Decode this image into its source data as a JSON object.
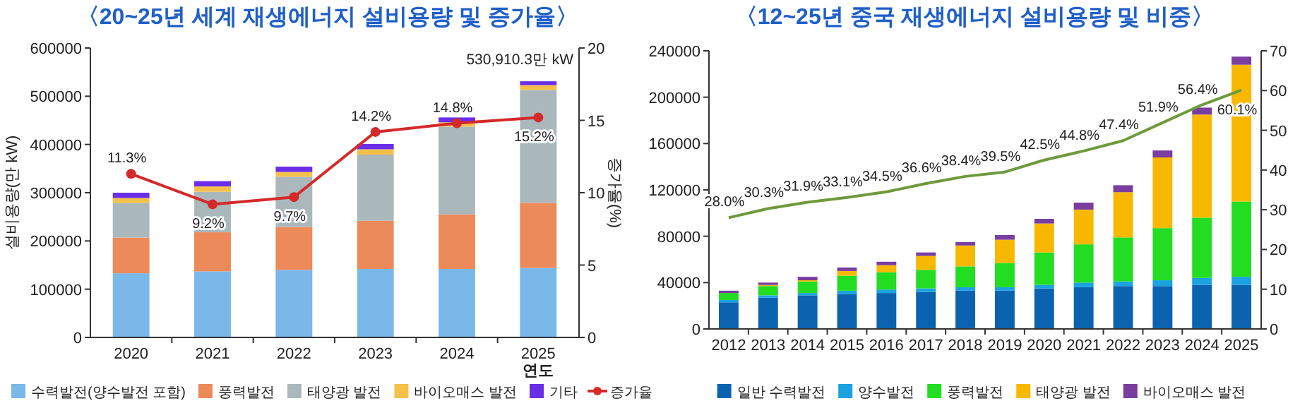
{
  "chart_data": [
    {
      "type": "bar",
      "title": "〈20~25년 세계 재생에너지 설비용량 및 증가율〉",
      "stacked": true,
      "categories": [
        "2020",
        "2021",
        "2022",
        "2023",
        "2024",
        "2025"
      ],
      "xlabel": "연도",
      "ylabel": "설비용량(만 kW)",
      "y2label": "증가율(%)",
      "ylim": [
        0,
        600000
      ],
      "yticks": [
        0,
        100000,
        200000,
        300000,
        400000,
        500000,
        600000
      ],
      "y2lim": [
        0,
        20
      ],
      "y2ticks": [
        0,
        5,
        10,
        15,
        20
      ],
      "legend": "bottom",
      "annotations": [
        {
          "text": "530,910.3만 kW",
          "x": "2025",
          "y": 530910.3
        }
      ],
      "series": [
        {
          "name": "수력발전(양수발전 포함)",
          "color": "#7ab8ea",
          "values": [
            133000,
            137000,
            140000,
            142000,
            142000,
            144000
          ]
        },
        {
          "name": "풍력발전",
          "color": "#ec8a5a",
          "values": [
            74000,
            81000,
            89000,
            100000,
            113000,
            135000
          ]
        },
        {
          "name": "태양광 발전",
          "color": "#aab8bc",
          "values": [
            72000,
            84000,
            104000,
            137000,
            182000,
            234000
          ]
        },
        {
          "name": "바이오매스 발전",
          "color": "#f5c04a",
          "values": [
            10000,
            11000,
            10000,
            11000,
            9000,
            10000
          ]
        },
        {
          "name": "기타",
          "color": "#6a2ee6",
          "values": [
            11000,
            11000,
            11000,
            11000,
            10000,
            8000
          ]
        },
        {
          "name": "증가율",
          "type": "line",
          "axis": "y2",
          "marker": "circle",
          "color": "#d42a2a",
          "values": [
            11.3,
            9.2,
            9.7,
            14.2,
            14.8,
            15.2
          ],
          "value_labels": [
            "11.3%",
            "9.2%",
            "9.7%",
            "14.2%",
            "14.8%",
            "15.2%"
          ]
        }
      ]
    },
    {
      "type": "bar",
      "title": "〈12~25년 중국 재생에너지 설비용량 및 비중〉",
      "stacked": true,
      "categories": [
        "2012",
        "2013",
        "2014",
        "2015",
        "2016",
        "2017",
        "2018",
        "2019",
        "2020",
        "2021",
        "2022",
        "2023",
        "2024",
        "2025"
      ],
      "ylim": [
        0,
        240000
      ],
      "yticks": [
        0,
        40000,
        80000,
        120000,
        160000,
        200000,
        240000
      ],
      "y2lim": [
        0,
        70
      ],
      "y2ticks": [
        0,
        10,
        20,
        30,
        40,
        50,
        60,
        70
      ],
      "legend": "bottom",
      "series": [
        {
          "name": "일반 수력발전",
          "color": "#0b63b0",
          "values": [
            23000,
            27000,
            29000,
            30000,
            31000,
            32000,
            33000,
            33000,
            35000,
            36000,
            37000,
            37000,
            38000,
            38000
          ]
        },
        {
          "name": "양수발전",
          "color": "#1aa3e0",
          "values": [
            2000,
            2000,
            2000,
            3000,
            3000,
            3000,
            3000,
            3000,
            3000,
            4000,
            4000,
            5000,
            6000,
            7000
          ]
        },
        {
          "name": "풍력발전",
          "color": "#22dd22",
          "values": [
            6000,
            8000,
            10000,
            13000,
            15000,
            16000,
            18000,
            21000,
            28000,
            33000,
            38000,
            45000,
            52000,
            65000
          ]
        },
        {
          "name": "태양광 발전",
          "color": "#f9b800",
          "values": [
            0,
            1000,
            1000,
            4000,
            6000,
            12000,
            18000,
            20000,
            25000,
            30000,
            39000,
            61000,
            89000,
            118000
          ]
        },
        {
          "name": "바이오매스 발전",
          "color": "#7a3da0",
          "values": [
            2000,
            2000,
            3000,
            3000,
            3000,
            3000,
            3000,
            4000,
            4000,
            6000,
            6000,
            6000,
            6000,
            7000
          ]
        },
        {
          "type": "line",
          "axis": "y2",
          "color": "#6e9a3c",
          "values": [
            28.0,
            30.3,
            31.9,
            33.1,
            34.5,
            36.6,
            38.4,
            39.5,
            42.5,
            44.8,
            47.4,
            51.9,
            56.4,
            60.1
          ],
          "value_labels": [
            "28.0%",
            "30.3%",
            "31.9%",
            "33.1%",
            "34.5%",
            "36.6%",
            "38.4%",
            "39.5%",
            "42.5%",
            "44.8%",
            "47.4%",
            "51.9%",
            "56.4%",
            "60.1%"
          ]
        }
      ]
    }
  ]
}
